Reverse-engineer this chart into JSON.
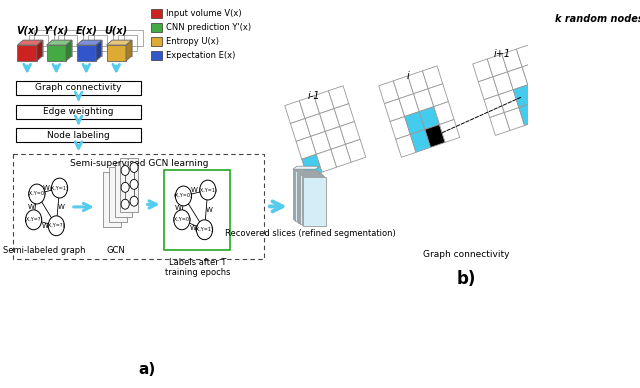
{
  "legend_items": [
    {
      "label": "Input volume V(x)",
      "color": "#cc2222"
    },
    {
      "label": "CNN prediction Y'(x)",
      "color": "#44aa44"
    },
    {
      "label": "Entropy U(x)",
      "color": "#ddaa33"
    },
    {
      "label": "Expectation E(x)",
      "color": "#3355cc"
    }
  ],
  "volume_labels": [
    "V(x)",
    "Y'(x)",
    "E(x)",
    "U(x)"
  ],
  "volume_colors": [
    "#cc2222",
    "#44aa44",
    "#3355cc",
    "#ddaa33"
  ],
  "pipeline_boxes": [
    "Graph connectivity",
    "Edge weighting",
    "Node labeling"
  ],
  "gcn_box_label": "Semi-supervised GCN learning",
  "semi_labeled": "Semi-labeled graph",
  "gcn_label": "GCN",
  "labels_after": "Labels after T\ntraining epochs",
  "recovered": "Recovered slices (refined segmentation)",
  "graph_conn_label": "Graph connectivity",
  "k_random": "k random nodes",
  "slice_labels": [
    "i-1",
    "i",
    "i+1"
  ],
  "fig_label_a": "a)",
  "fig_label_b": "b)",
  "cyan": "#55ccee",
  "bg": "#ffffff"
}
